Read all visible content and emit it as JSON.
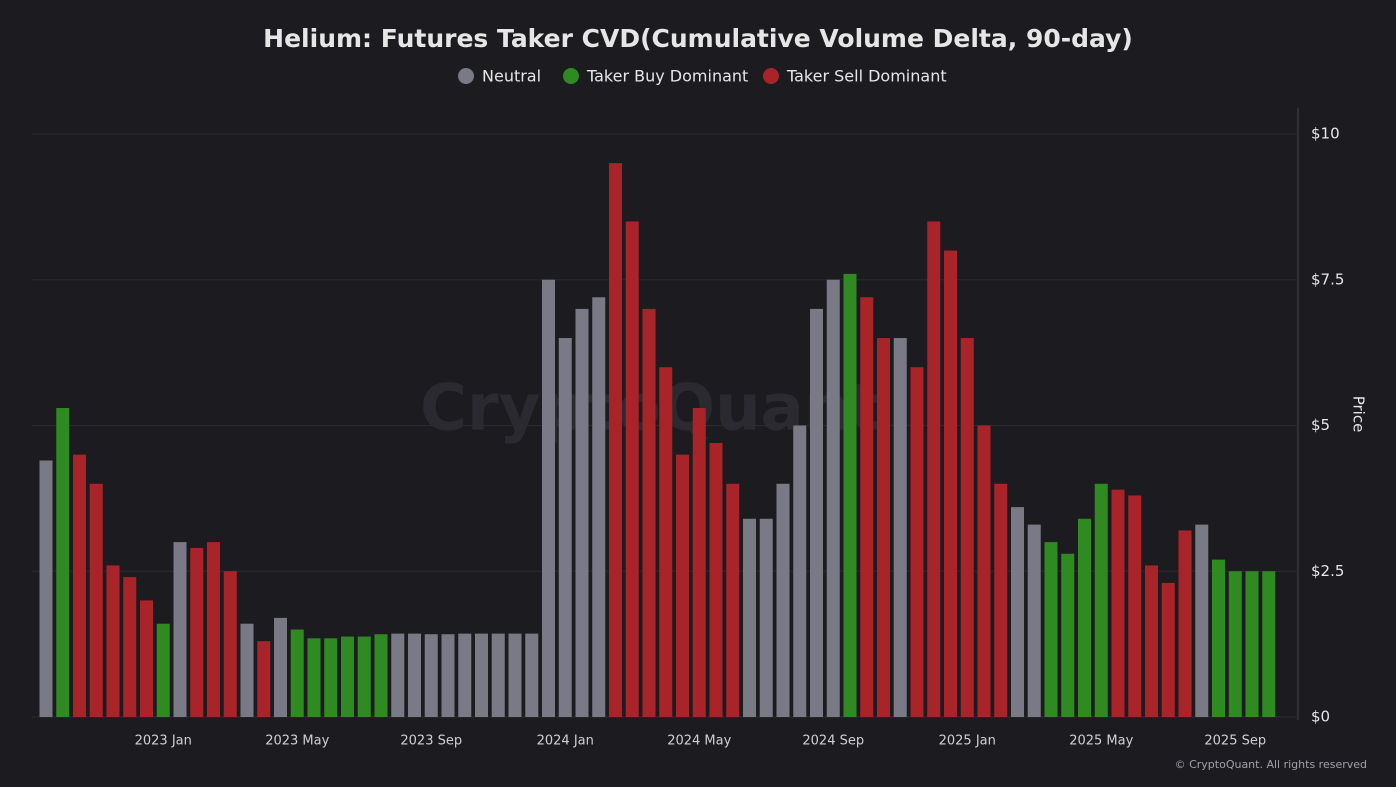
{
  "chart_data": {
    "type": "bar",
    "title": "Helium: Futures Taker CVD(Cumulative Volume Delta, 90-day)",
    "y_axis_label": "Price",
    "watermark": "CryptoQuant",
    "credit": "© CryptoQuant. All rights reserved",
    "categories": [
      null,
      null,
      null,
      null,
      null,
      null,
      null,
      "2023 Jan",
      null,
      null,
      null,
      null,
      null,
      null,
      null,
      "2023 May",
      null,
      null,
      null,
      null,
      null,
      null,
      null,
      "2023 Sep",
      null,
      null,
      null,
      null,
      null,
      null,
      null,
      "2024 Jan",
      null,
      null,
      null,
      null,
      null,
      null,
      null,
      "2024 May",
      null,
      null,
      null,
      null,
      null,
      null,
      null,
      "2024 Sep",
      null,
      null,
      null,
      null,
      null,
      null,
      null,
      "2025 Jan",
      null,
      null,
      null,
      null,
      null,
      null,
      null,
      "2025 May",
      null,
      null,
      null,
      null,
      null,
      null,
      null,
      "2025 Sep",
      null,
      null
    ],
    "series": [
      {
        "name": "Neutral",
        "color": "#7a7a86",
        "values": [
          4.4,
          null,
          null,
          null,
          null,
          null,
          null,
          null,
          3.0,
          null,
          null,
          null,
          1.6,
          null,
          1.7,
          null,
          null,
          null,
          null,
          null,
          null,
          1.43,
          1.43,
          1.42,
          1.42,
          1.43,
          1.43,
          1.43,
          1.43,
          1.43,
          7.5,
          6.5,
          7.0,
          7.2,
          null,
          null,
          null,
          null,
          null,
          null,
          null,
          null,
          3.4,
          3.4,
          4.0,
          5.0,
          7.0,
          7.5,
          null,
          null,
          null,
          6.5,
          null,
          null,
          null,
          null,
          null,
          null,
          3.6,
          3.3,
          null,
          null,
          null,
          null,
          null,
          null,
          null,
          null,
          null,
          3.3,
          null,
          null,
          null,
          null
        ]
      },
      {
        "name": "Taker Buy Dominant",
        "color": "#2f8a22",
        "values": [
          null,
          5.3,
          null,
          null,
          null,
          null,
          null,
          1.6,
          null,
          null,
          null,
          null,
          null,
          null,
          null,
          1.5,
          1.35,
          1.35,
          1.38,
          1.38,
          1.42,
          null,
          null,
          null,
          null,
          null,
          null,
          null,
          null,
          null,
          null,
          null,
          null,
          null,
          null,
          null,
          null,
          null,
          null,
          null,
          null,
          null,
          null,
          null,
          null,
          null,
          null,
          null,
          7.6,
          null,
          null,
          null,
          null,
          null,
          null,
          null,
          null,
          null,
          null,
          null,
          3.0,
          2.8,
          3.4,
          4.0,
          null,
          null,
          null,
          null,
          null,
          null,
          2.7,
          2.5,
          2.5,
          2.5
        ]
      },
      {
        "name": "Taker Sell Dominant",
        "color": "#a82428",
        "values": [
          null,
          null,
          4.5,
          4.0,
          2.6,
          2.4,
          2.0,
          null,
          null,
          2.9,
          3.0,
          2.5,
          null,
          1.3,
          null,
          null,
          null,
          null,
          null,
          null,
          null,
          null,
          null,
          null,
          null,
          null,
          null,
          null,
          null,
          null,
          null,
          null,
          null,
          null,
          9.5,
          8.5,
          7.0,
          6.0,
          4.5,
          5.3,
          4.7,
          4.0,
          null,
          null,
          null,
          null,
          null,
          null,
          null,
          7.2,
          6.5,
          null,
          6.0,
          8.5,
          8.0,
          6.5,
          5.0,
          4.0,
          null,
          null,
          null,
          null,
          null,
          null,
          3.9,
          3.8,
          2.6,
          2.3,
          3.2,
          null,
          null,
          null,
          null,
          null
        ]
      }
    ],
    "ylim": [
      0,
      10
    ],
    "yticks": [
      {
        "value": 0,
        "label": "$0"
      },
      {
        "value": 2.5,
        "label": "$2.5"
      },
      {
        "value": 5,
        "label": "$5"
      },
      {
        "value": 7.5,
        "label": "$7.5"
      },
      {
        "value": 10,
        "label": "$10"
      }
    ],
    "grid": true
  }
}
